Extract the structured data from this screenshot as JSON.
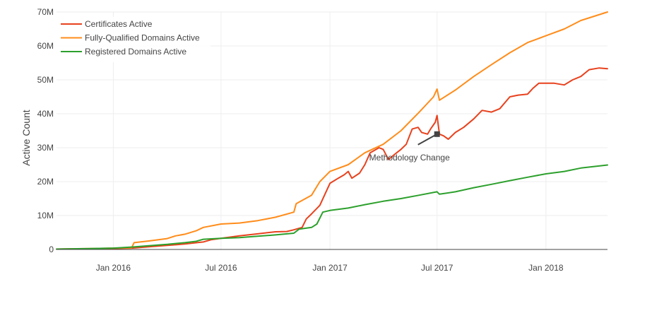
{
  "chart_data": {
    "type": "line",
    "title": "",
    "xlabel": "",
    "ylabel": "Active Count",
    "x_range": [
      "2015-09-27",
      "2018-04-15"
    ],
    "ylim": [
      0,
      70000000
    ],
    "grid": true,
    "legend_position": "top-left",
    "y_ticks": [
      {
        "value": 0,
        "label": "0"
      },
      {
        "value": 10000000,
        "label": "10M"
      },
      {
        "value": 20000000,
        "label": "20M"
      },
      {
        "value": 30000000,
        "label": "30M"
      },
      {
        "value": 40000000,
        "label": "40M"
      },
      {
        "value": 50000000,
        "label": "50M"
      },
      {
        "value": 60000000,
        "label": "60M"
      },
      {
        "value": 70000000,
        "label": "70M"
      }
    ],
    "x_ticks": [
      {
        "value": "2016-01-01",
        "label": "Jan 2016"
      },
      {
        "value": "2016-07-01",
        "label": "Jul 2016"
      },
      {
        "value": "2017-01-01",
        "label": "Jan 2017"
      },
      {
        "value": "2017-07-01",
        "label": "Jul 2017"
      },
      {
        "value": "2018-01-01",
        "label": "Jan 2018"
      }
    ],
    "annotation": {
      "text": "Methodology Change",
      "x": "2017-07-01",
      "y": 34000000
    },
    "series": [
      {
        "name": "Certificates Active",
        "color": "#e8411d",
        "points": [
          [
            "2015-09-27",
            0.1
          ],
          [
            "2015-11-01",
            0.15
          ],
          [
            "2015-12-01",
            0.2
          ],
          [
            "2016-01-01",
            0.3
          ],
          [
            "2016-02-01",
            0.4
          ],
          [
            "2016-03-01",
            0.8
          ],
          [
            "2016-04-01",
            1.2
          ],
          [
            "2016-05-01",
            1.6
          ],
          [
            "2016-06-01",
            2.2
          ],
          [
            "2016-06-15",
            2.9
          ],
          [
            "2016-07-01",
            3.3
          ],
          [
            "2016-08-01",
            4.0
          ],
          [
            "2016-09-01",
            4.6
          ],
          [
            "2016-10-01",
            5.2
          ],
          [
            "2016-10-20",
            5.3
          ],
          [
            "2016-11-01",
            5.8
          ],
          [
            "2016-11-15",
            6.5
          ],
          [
            "2016-11-22",
            9.0
          ],
          [
            "2016-12-01",
            10.5
          ],
          [
            "2016-12-15",
            13.0
          ],
          [
            "2017-01-01",
            19.5
          ],
          [
            "2017-01-15",
            21.0
          ],
          [
            "2017-01-25",
            22.0
          ],
          [
            "2017-02-01",
            23.0
          ],
          [
            "2017-02-07",
            21.0
          ],
          [
            "2017-02-20",
            22.5
          ],
          [
            "2017-03-01",
            25.0
          ],
          [
            "2017-03-10",
            28.5
          ],
          [
            "2017-03-25",
            30.0
          ],
          [
            "2017-04-01",
            29.5
          ],
          [
            "2017-04-10",
            26.5
          ],
          [
            "2017-04-20",
            28.0
          ],
          [
            "2017-05-01",
            29.5
          ],
          [
            "2017-05-10",
            31.0
          ],
          [
            "2017-05-20",
            35.5
          ],
          [
            "2017-05-30",
            36.0
          ],
          [
            "2017-06-05",
            34.5
          ],
          [
            "2017-06-15",
            34.0
          ],
          [
            "2017-06-20",
            35.5
          ],
          [
            "2017-06-28",
            37.5
          ],
          [
            "2017-07-01",
            39.5
          ],
          [
            "2017-07-05",
            34.0
          ],
          [
            "2017-07-12",
            33.5
          ],
          [
            "2017-07-20",
            32.5
          ],
          [
            "2017-08-01",
            34.5
          ],
          [
            "2017-08-15",
            36.0
          ],
          [
            "2017-09-01",
            38.5
          ],
          [
            "2017-09-15",
            41.0
          ],
          [
            "2017-10-01",
            40.5
          ],
          [
            "2017-10-15",
            41.5
          ],
          [
            "2017-11-01",
            45.0
          ],
          [
            "2017-11-15",
            45.5
          ],
          [
            "2017-12-01",
            45.8
          ],
          [
            "2017-12-10",
            47.5
          ],
          [
            "2017-12-20",
            49.0
          ],
          [
            "2018-01-01",
            49.0
          ],
          [
            "2018-01-15",
            49.0
          ],
          [
            "2018-02-01",
            48.5
          ],
          [
            "2018-02-15",
            50.0
          ],
          [
            "2018-03-01",
            51.0
          ],
          [
            "2018-03-15",
            53.0
          ],
          [
            "2018-04-01",
            53.5
          ],
          [
            "2018-04-15",
            53.3
          ]
        ]
      },
      {
        "name": "Fully-Qualified Domains Active",
        "color": "#ff8c1a",
        "points": [
          [
            "2015-09-27",
            0.1
          ],
          [
            "2015-11-01",
            0.2
          ],
          [
            "2015-12-01",
            0.3
          ],
          [
            "2016-01-01",
            0.4
          ],
          [
            "2016-02-01",
            0.5
          ],
          [
            "2016-02-05",
            2.0
          ],
          [
            "2016-03-01",
            2.5
          ],
          [
            "2016-04-01",
            3.2
          ],
          [
            "2016-04-15",
            4.0
          ],
          [
            "2016-05-01",
            4.5
          ],
          [
            "2016-05-20",
            5.5
          ],
          [
            "2016-06-01",
            6.5
          ],
          [
            "2016-07-01",
            7.5
          ],
          [
            "2016-08-01",
            7.8
          ],
          [
            "2016-09-01",
            8.5
          ],
          [
            "2016-10-01",
            9.5
          ],
          [
            "2016-11-01",
            11.0
          ],
          [
            "2016-11-05",
            13.5
          ],
          [
            "2016-12-01",
            16.0
          ],
          [
            "2016-12-15",
            20.0
          ],
          [
            "2017-01-01",
            23.0
          ],
          [
            "2017-02-01",
            25.0
          ],
          [
            "2017-03-01",
            28.5
          ],
          [
            "2017-04-01",
            31.0
          ],
          [
            "2017-05-01",
            35.0
          ],
          [
            "2017-06-01",
            40.5
          ],
          [
            "2017-06-25",
            45.0
          ],
          [
            "2017-07-01",
            47.3
          ],
          [
            "2017-07-05",
            44.0
          ],
          [
            "2017-08-01",
            47.0
          ],
          [
            "2017-09-01",
            51.0
          ],
          [
            "2017-10-01",
            54.5
          ],
          [
            "2017-11-01",
            58.0
          ],
          [
            "2017-12-01",
            61.0
          ],
          [
            "2018-01-01",
            63.0
          ],
          [
            "2018-02-01",
            65.0
          ],
          [
            "2018-03-01",
            67.5
          ],
          [
            "2018-04-15",
            70.0
          ]
        ]
      },
      {
        "name": "Registered Domains Active",
        "color": "#2ca02c",
        "points": [
          [
            "2015-09-27",
            0.1
          ],
          [
            "2015-11-01",
            0.2
          ],
          [
            "2015-12-01",
            0.3
          ],
          [
            "2016-01-01",
            0.4
          ],
          [
            "2016-02-01",
            0.7
          ],
          [
            "2016-03-01",
            1.1
          ],
          [
            "2016-04-01",
            1.5
          ],
          [
            "2016-05-01",
            2.0
          ],
          [
            "2016-05-20",
            2.4
          ],
          [
            "2016-06-01",
            3.0
          ],
          [
            "2016-07-01",
            3.3
          ],
          [
            "2016-08-01",
            3.5
          ],
          [
            "2016-09-01",
            3.9
          ],
          [
            "2016-10-01",
            4.3
          ],
          [
            "2016-11-01",
            4.8
          ],
          [
            "2016-11-10",
            6.0
          ],
          [
            "2016-12-01",
            6.5
          ],
          [
            "2016-12-10",
            7.5
          ],
          [
            "2016-12-20",
            11.0
          ],
          [
            "2017-01-01",
            11.5
          ],
          [
            "2017-02-01",
            12.2
          ],
          [
            "2017-03-01",
            13.2
          ],
          [
            "2017-04-01",
            14.2
          ],
          [
            "2017-05-01",
            15.0
          ],
          [
            "2017-06-01",
            16.0
          ],
          [
            "2017-07-01",
            17.0
          ],
          [
            "2017-07-05",
            16.3
          ],
          [
            "2017-08-01",
            17.0
          ],
          [
            "2017-09-01",
            18.2
          ],
          [
            "2017-10-01",
            19.2
          ],
          [
            "2017-11-01",
            20.3
          ],
          [
            "2017-12-01",
            21.3
          ],
          [
            "2018-01-01",
            22.3
          ],
          [
            "2018-02-01",
            23.0
          ],
          [
            "2018-03-01",
            24.0
          ],
          [
            "2018-04-15",
            24.9
          ]
        ]
      }
    ]
  }
}
